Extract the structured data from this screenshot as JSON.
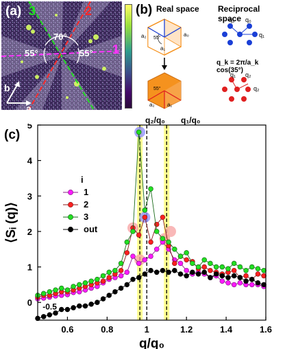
{
  "panel_a": {
    "label": "(a)",
    "direction_labels": [
      "3",
      "2",
      "1"
    ],
    "angles": [
      "70°",
      "55°",
      "55°"
    ],
    "axis_labels": {
      "b": "b",
      "a": "a"
    },
    "colorbar_colors": [
      "#ffff66",
      "#9be03c",
      "#2e9c8c",
      "#3c508a",
      "#440a68",
      "#2a0a3a"
    ]
  },
  "panel_b": {
    "label": "(b)",
    "real_space_title": "Real space",
    "reciprocal_space_title": "Reciprocal space",
    "formula": "q_k = 2π/a_k cos(35°)",
    "lattice_labels": {
      "top": [
        "a₂",
        "55°",
        "a₁",
        "a₀"
      ],
      "bottom": [
        "55°",
        "a₂",
        "a₁"
      ],
      "blue": [
        "q₂",
        "q₀",
        "q₁"
      ],
      "red": [
        "q₁",
        "q₂",
        "q₂"
      ]
    },
    "colors": {
      "blue": "#1a3fd6",
      "red": "#e02020",
      "orange": "#f5921e"
    }
  },
  "panel_c": {
    "label": "(c)",
    "top_labels": [
      "q₂/q₀",
      "q₁/q₀"
    ],
    "legend_title": "i",
    "point_label": "-0.5"
  },
  "chart_data": {
    "type": "line",
    "xlabel": "q/q₀",
    "ylabel": "⟨Sᵢ (q)⟩",
    "xlim": [
      0.45,
      1.6
    ],
    "ylim": [
      -0.5,
      5
    ],
    "xticks": [
      0.6,
      0.8,
      1,
      1.2,
      1.4,
      1.6
    ],
    "yticks": [
      0,
      1,
      2,
      3,
      4,
      5
    ],
    "vlines": [
      0.965,
      1.0,
      1.1
    ],
    "highlight_bands": [
      0.965,
      1.1
    ],
    "series": [
      {
        "name": "1",
        "color": "#ff1aff",
        "edge": "#8a1a8a",
        "x": [
          0.45,
          0.48,
          0.51,
          0.54,
          0.57,
          0.6,
          0.63,
          0.66,
          0.69,
          0.72,
          0.75,
          0.78,
          0.81,
          0.84,
          0.87,
          0.9,
          0.93,
          0.96,
          0.99,
          1.02,
          1.05,
          1.08,
          1.11,
          1.14,
          1.17,
          1.2,
          1.23,
          1.26,
          1.29,
          1.32,
          1.35,
          1.38,
          1.41,
          1.44,
          1.47,
          1.5,
          1.53,
          1.56,
          1.59
        ],
        "y": [
          0.1,
          0.12,
          0.15,
          0.18,
          0.2,
          0.22,
          0.28,
          0.3,
          0.35,
          0.4,
          0.45,
          0.55,
          0.65,
          0.7,
          0.75,
          0.85,
          1.3,
          1.1,
          1.2,
          1.3,
          1.5,
          1.7,
          1.5,
          1.2,
          1.1,
          0.9,
          0.8,
          0.85,
          0.8,
          0.7,
          0.75,
          0.6,
          0.55,
          0.5,
          0.55,
          0.5,
          0.5,
          0.5,
          0.45
        ]
      },
      {
        "name": "2",
        "color": "#ff2020",
        "edge": "#8a1a1a",
        "x": [
          0.45,
          0.48,
          0.51,
          0.54,
          0.57,
          0.6,
          0.63,
          0.66,
          0.69,
          0.72,
          0.75,
          0.78,
          0.81,
          0.84,
          0.87,
          0.9,
          0.93,
          0.96,
          0.99,
          1.02,
          1.05,
          1.08,
          1.11,
          1.14,
          1.17,
          1.2,
          1.23,
          1.26,
          1.29,
          1.32,
          1.35,
          1.38,
          1.41,
          1.44,
          1.47,
          1.5,
          1.53,
          1.56,
          1.59
        ],
        "y": [
          0.15,
          0.2,
          0.2,
          0.25,
          0.3,
          0.3,
          0.35,
          0.4,
          0.45,
          0.5,
          0.55,
          0.6,
          0.7,
          0.8,
          0.9,
          1.4,
          2.1,
          1.9,
          2.4,
          1.7,
          2.2,
          2.4,
          1.6,
          1.1,
          1.3,
          1.2,
          1.15,
          0.95,
          1.0,
          0.9,
          0.85,
          0.8,
          0.85,
          0.9,
          0.7,
          0.75,
          0.65,
          0.8,
          0.75
        ]
      },
      {
        "name": "3",
        "color": "#22e022",
        "edge": "#1a6a1a",
        "x": [
          0.45,
          0.48,
          0.51,
          0.54,
          0.57,
          0.6,
          0.63,
          0.66,
          0.69,
          0.72,
          0.75,
          0.78,
          0.81,
          0.84,
          0.87,
          0.9,
          0.93,
          0.96,
          0.99,
          1.02,
          1.05,
          1.08,
          1.11,
          1.14,
          1.17,
          1.2,
          1.23,
          1.26,
          1.29,
          1.32,
          1.35,
          1.38,
          1.41,
          1.44,
          1.47,
          1.5,
          1.53,
          1.56,
          1.59
        ],
        "y": [
          0.2,
          0.25,
          0.3,
          0.35,
          0.4,
          0.35,
          0.45,
          0.5,
          0.55,
          0.6,
          0.65,
          0.75,
          0.85,
          0.9,
          1.1,
          1.7,
          2.0,
          4.8,
          2.6,
          3.2,
          2.0,
          1.8,
          1.7,
          1.5,
          1.3,
          1.4,
          1.1,
          1.0,
          1.2,
          1.1,
          1.0,
          1.0,
          0.95,
          1.1,
          1.0,
          0.9,
          1.0,
          0.95,
          0.9
        ]
      },
      {
        "name": "out",
        "color": "#000000",
        "edge": "#000000",
        "x": [
          0.45,
          0.48,
          0.51,
          0.54,
          0.57,
          0.6,
          0.63,
          0.66,
          0.69,
          0.72,
          0.75,
          0.78,
          0.81,
          0.84,
          0.87,
          0.9,
          0.93,
          0.96,
          0.99,
          1.02,
          1.05,
          1.08,
          1.11,
          1.14,
          1.17,
          1.2,
          1.23,
          1.26,
          1.29,
          1.32,
          1.35,
          1.38,
          1.41,
          1.44,
          1.47,
          1.5,
          1.53,
          1.56,
          1.59
        ],
        "y": [
          -0.45,
          -0.4,
          -0.35,
          -0.3,
          -0.2,
          -0.2,
          -0.15,
          -0.1,
          -0.1,
          -0.05,
          0.0,
          0.1,
          0.2,
          0.3,
          0.4,
          0.5,
          0.65,
          0.7,
          0.8,
          0.9,
          0.85,
          0.9,
          0.85,
          0.9,
          0.8,
          0.75,
          0.85,
          0.8,
          0.85,
          0.7,
          0.8,
          0.75,
          0.7,
          0.75,
          0.7,
          0.6,
          0.65,
          0.55,
          0.5
        ]
      }
    ],
    "highlight_circles": [
      {
        "x": 0.965,
        "y": 4.8,
        "series": "3",
        "fill": "#8b8bff"
      },
      {
        "x": 0.93,
        "y": 2.1,
        "series": "2",
        "fill": "#f7a0a0"
      },
      {
        "x": 0.99,
        "y": 2.4,
        "series": "2",
        "fill": "#8b8bff"
      },
      {
        "x": 0.965,
        "y": 1.2,
        "series": "1",
        "fill": "#f7a0a0"
      },
      {
        "x": 1.09,
        "y": 1.8,
        "series": "3",
        "fill": "#f7a0a0"
      },
      {
        "x": 1.12,
        "y": 2.0,
        "series": "2",
        "fill": "#f7a0a0"
      }
    ]
  }
}
